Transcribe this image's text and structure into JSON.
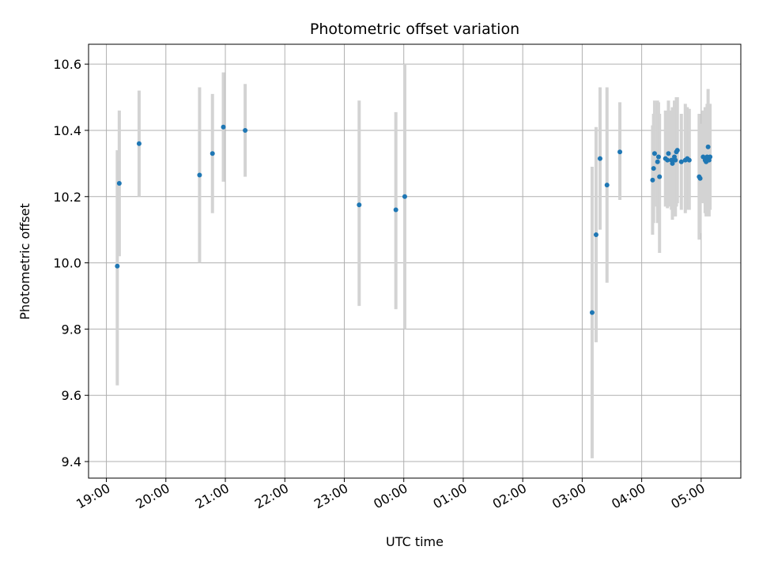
{
  "chart_data": {
    "type": "scatter",
    "title": "Photometric offset variation",
    "xlabel": "UTC time",
    "ylabel": "Photometric offset",
    "grid": true,
    "x_unit": "UTC time (HH:MM), night spanning midnight",
    "xlim": [
      "18:42",
      "05:40"
    ],
    "ylim": [
      9.35,
      10.66
    ],
    "x_ticks": [
      "19:00",
      "20:00",
      "21:00",
      "22:00",
      "23:00",
      "00:00",
      "01:00",
      "02:00",
      "03:00",
      "04:00",
      "05:00"
    ],
    "y_ticks": [
      "9.4",
      "9.6",
      "9.8",
      "10.0",
      "10.2",
      "10.4",
      "10.6"
    ],
    "colors": {
      "points": "#1f77b4",
      "errorbars": "#d3d3d3",
      "grid": "#b0b0b0"
    },
    "series": [
      {
        "points": [
          {
            "t": "19:11",
            "y": 9.99,
            "lo": 9.63,
            "hi": 10.34
          },
          {
            "t": "19:13",
            "y": 10.24,
            "lo": 10.02,
            "hi": 10.46
          },
          {
            "t": "19:33",
            "y": 10.36,
            "lo": 10.2,
            "hi": 10.52
          },
          {
            "t": "20:34",
            "y": 10.265,
            "lo": 10.0,
            "hi": 10.53
          },
          {
            "t": "20:47",
            "y": 10.33,
            "lo": 10.15,
            "hi": 10.51
          },
          {
            "t": "20:58",
            "y": 10.41,
            "lo": 10.245,
            "hi": 10.575
          },
          {
            "t": "21:20",
            "y": 10.4,
            "lo": 10.26,
            "hi": 10.54
          },
          {
            "t": "23:15",
            "y": 10.175,
            "lo": 9.87,
            "hi": 10.49
          },
          {
            "t": "23:52",
            "y": 10.16,
            "lo": 9.86,
            "hi": 10.455
          },
          {
            "t": "00:01",
            "y": 10.2,
            "lo": 9.8,
            "hi": 10.6
          },
          {
            "t": "03:10",
            "y": 9.85,
            "lo": 9.41,
            "hi": 10.29
          },
          {
            "t": "03:14",
            "y": 10.085,
            "lo": 9.76,
            "hi": 10.41
          },
          {
            "t": "03:18",
            "y": 10.315,
            "lo": 10.1,
            "hi": 10.53
          },
          {
            "t": "03:25",
            "y": 10.235,
            "lo": 9.94,
            "hi": 10.53
          },
          {
            "t": "03:38",
            "y": 10.335,
            "lo": 10.19,
            "hi": 10.485
          },
          {
            "t": "04:11",
            "y": 10.25,
            "lo": 10.085,
            "hi": 10.415
          },
          {
            "t": "04:12",
            "y": 10.285,
            "lo": 10.12,
            "hi": 10.45
          },
          {
            "t": "04:13",
            "y": 10.33,
            "lo": 10.17,
            "hi": 10.49
          },
          {
            "t": "04:16",
            "y": 10.305,
            "lo": 10.12,
            "hi": 10.49
          },
          {
            "t": "04:17",
            "y": 10.32,
            "lo": 10.15,
            "hi": 10.485
          },
          {
            "t": "04:18",
            "y": 10.26,
            "lo": 10.03,
            "hi": 10.45
          },
          {
            "t": "04:24",
            "y": 10.315,
            "lo": 10.17,
            "hi": 10.46
          },
          {
            "t": "04:26",
            "y": 10.31,
            "lo": 10.165,
            "hi": 10.455
          },
          {
            "t": "04:27",
            "y": 10.33,
            "lo": 10.17,
            "hi": 10.49
          },
          {
            "t": "04:30",
            "y": 10.31,
            "lo": 10.16,
            "hi": 10.46
          },
          {
            "t": "04:31",
            "y": 10.3,
            "lo": 10.13,
            "hi": 10.47
          },
          {
            "t": "04:33",
            "y": 10.32,
            "lo": 10.15,
            "hi": 10.49
          },
          {
            "t": "04:34",
            "y": 10.31,
            "lo": 10.14,
            "hi": 10.48
          },
          {
            "t": "04:35",
            "y": 10.335,
            "lo": 10.17,
            "hi": 10.5
          },
          {
            "t": "04:36",
            "y": 10.34,
            "lo": 10.18,
            "hi": 10.5
          },
          {
            "t": "04:40",
            "y": 10.305,
            "lo": 10.16,
            "hi": 10.45
          },
          {
            "t": "04:44",
            "y": 10.31,
            "lo": 10.15,
            "hi": 10.48
          },
          {
            "t": "04:46",
            "y": 10.315,
            "lo": 10.16,
            "hi": 10.47
          },
          {
            "t": "04:48",
            "y": 10.31,
            "lo": 10.16,
            "hi": 10.465
          },
          {
            "t": "04:58",
            "y": 10.26,
            "lo": 10.07,
            "hi": 10.45
          },
          {
            "t": "04:59",
            "y": 10.255,
            "lo": 10.09,
            "hi": 10.42
          },
          {
            "t": "05:02",
            "y": 10.32,
            "lo": 10.18,
            "hi": 10.46
          },
          {
            "t": "05:04",
            "y": 10.31,
            "lo": 10.15,
            "hi": 10.47
          },
          {
            "t": "05:05",
            "y": 10.305,
            "lo": 10.14,
            "hi": 10.47
          },
          {
            "t": "05:06",
            "y": 10.32,
            "lo": 10.16,
            "hi": 10.48
          },
          {
            "t": "05:07",
            "y": 10.35,
            "lo": 10.175,
            "hi": 10.525
          },
          {
            "t": "05:08",
            "y": 10.31,
            "lo": 10.14,
            "hi": 10.48
          },
          {
            "t": "05:09",
            "y": 10.32,
            "lo": 10.16,
            "hi": 10.48
          }
        ]
      }
    ]
  }
}
